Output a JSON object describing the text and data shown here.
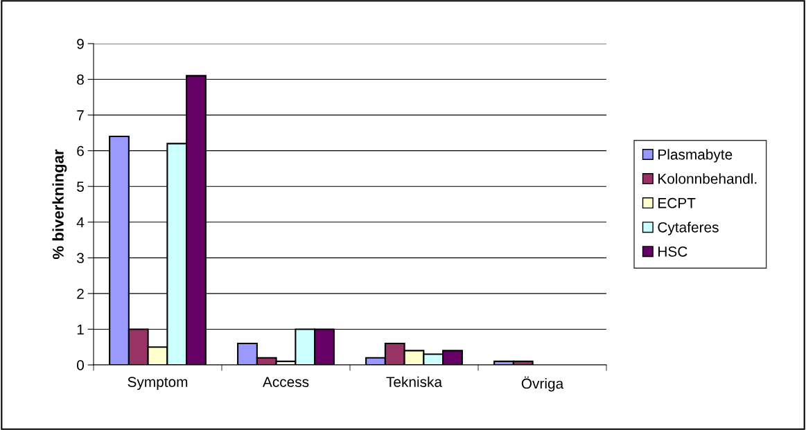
{
  "chart_data": {
    "type": "bar",
    "ylabel": "% biverkningar",
    "categories": [
      "Symptom",
      "Access",
      "Tekniska",
      "Övriga"
    ],
    "series": [
      {
        "name": "Plasmabyte",
        "color": "#9999ff",
        "values": [
          6.4,
          0.6,
          0.2,
          0.1
        ]
      },
      {
        "name": "Kolonnbehandl.",
        "color": "#993366",
        "values": [
          1.0,
          0.2,
          0.6,
          0.1
        ]
      },
      {
        "name": "ECPT",
        "color": "#ffffcc",
        "values": [
          0.5,
          0.1,
          0.4,
          null
        ]
      },
      {
        "name": "Cytaferes",
        "color": "#ccffff",
        "values": [
          6.2,
          1.0,
          0.3,
          null
        ]
      },
      {
        "name": "HSC",
        "color": "#660066",
        "values": [
          8.1,
          1.0,
          0.4,
          null
        ]
      }
    ],
    "ylim": [
      0,
      9
    ],
    "yticks": [
      0,
      1,
      2,
      3,
      4,
      5,
      6,
      7,
      8,
      9
    ],
    "grid": "y",
    "legend": "right"
  }
}
